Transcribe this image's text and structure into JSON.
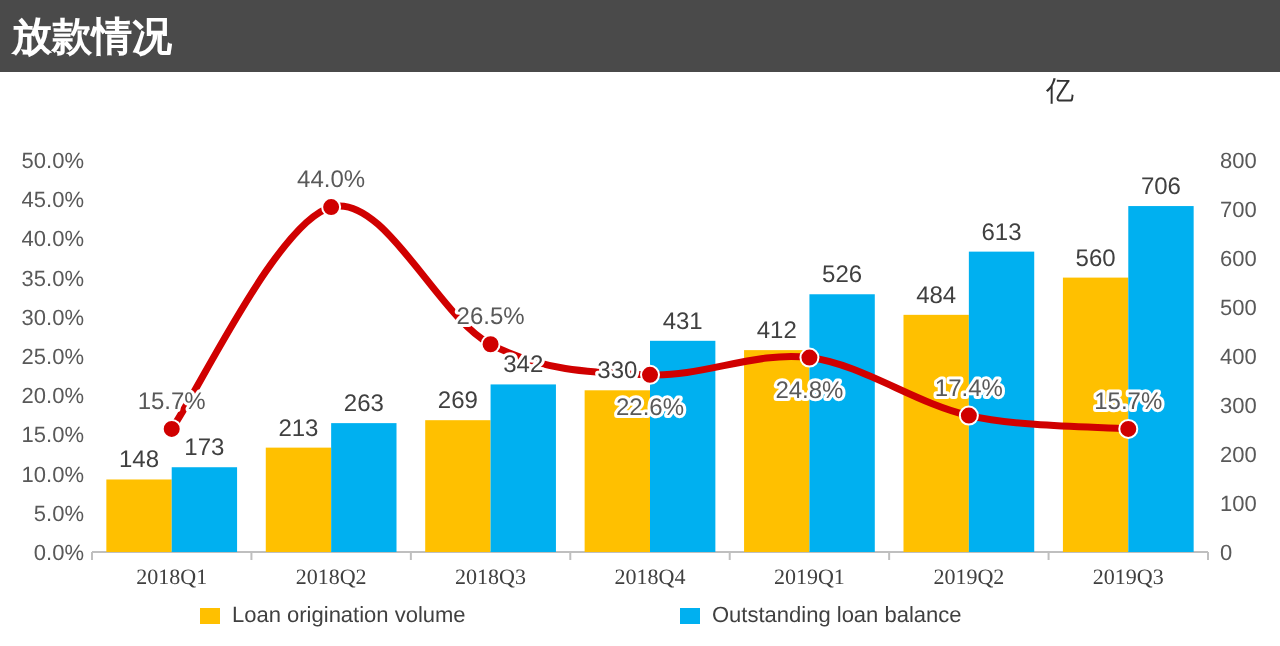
{
  "chart_data": {
    "type": "bar",
    "title": "放款情况",
    "y2label": "亿",
    "categories": [
      "2018Q1",
      "2018Q2",
      "2018Q3",
      "2018Q4",
      "2019Q1",
      "2019Q2",
      "2019Q3"
    ],
    "series": [
      {
        "name": "Loan origination volume",
        "color": "#ffc000",
        "axis": "y2",
        "values": [
          148,
          213,
          269,
          330,
          412,
          484,
          560
        ],
        "value_labels": [
          "148",
          "213",
          "269",
          "330",
          "412",
          "484",
          "560"
        ]
      },
      {
        "name": "Outstanding loan balance",
        "color": "#00b0f0",
        "axis": "y2",
        "values": [
          173,
          263,
          342,
          431,
          526,
          613,
          706
        ],
        "value_labels": [
          "173",
          "263",
          "342",
          "431",
          "526",
          "613",
          "706"
        ]
      },
      {
        "type": "line",
        "color": "#d00000",
        "marker": "circle",
        "values": [
          15.7,
          44.0,
          26.5,
          22.6,
          24.8,
          17.4,
          15.7
        ],
        "value_labels": [
          "15.7%",
          "44.0%",
          "26.5%",
          "22.6%",
          "24.8%",
          "17.4%",
          "15.7%"
        ]
      }
    ],
    "ylim": [
      0,
      50
    ],
    "yticks": [
      {
        "value": 0,
        "label": "0.0%"
      },
      {
        "value": 5,
        "label": "5.0%"
      },
      {
        "value": 10,
        "label": "10.0%"
      },
      {
        "value": 15,
        "label": "15.0%"
      },
      {
        "value": 20,
        "label": "20.0%"
      },
      {
        "value": 25,
        "label": "25.0%"
      },
      {
        "value": 30,
        "label": "30.0%"
      },
      {
        "value": 35,
        "label": "35.0%"
      },
      {
        "value": 40,
        "label": "40.0%"
      },
      {
        "value": 45,
        "label": "45.0%"
      },
      {
        "value": 50,
        "label": "50.0%"
      }
    ],
    "y2lim": [
      0,
      800
    ],
    "y2ticks": [
      0,
      100,
      200,
      300,
      400,
      500,
      600,
      700,
      800
    ],
    "grid": false,
    "legend": "bottom"
  }
}
